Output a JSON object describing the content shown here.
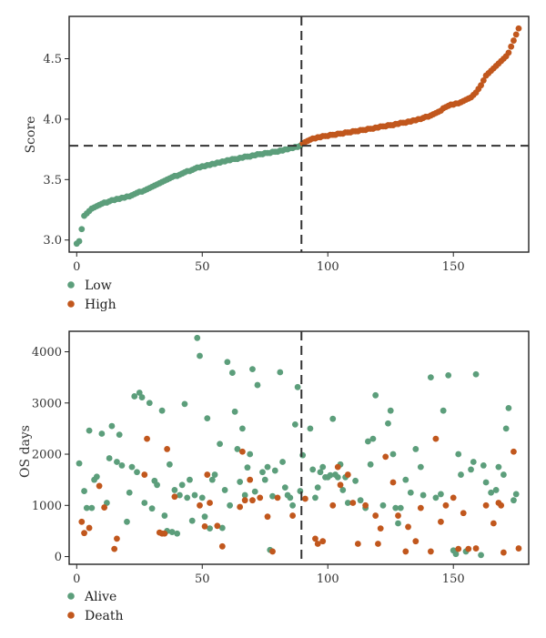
{
  "colors": {
    "green": "#5c9e7b",
    "orange": "#c1571d",
    "frame": "#222222",
    "dash": "#333333"
  },
  "chart_data": [
    {
      "type": "scatter",
      "ylabel": "Score",
      "xlim": [
        -3,
        180
      ],
      "ylim": [
        2.9,
        4.85
      ],
      "xticks": [
        0,
        50,
        100,
        150
      ],
      "yticks": [
        3.0,
        3.5,
        4.0,
        4.5
      ],
      "xticklabels": [
        "0",
        "50",
        "100",
        "150"
      ],
      "yticklabels": [
        "3.0",
        "3.5",
        "4.0",
        "4.5"
      ],
      "cutoff_x": 89.5,
      "cutoff_y": 3.78,
      "legend": [
        "Low",
        "High"
      ],
      "series": [
        {
          "name": "Low",
          "color": "#5c9e7b",
          "x": [
            0,
            1,
            2,
            3,
            4,
            5,
            6,
            7,
            8,
            9,
            10,
            11,
            12,
            13,
            14,
            15,
            16,
            17,
            18,
            19,
            20,
            21,
            22,
            23,
            24,
            25,
            26,
            27,
            28,
            29,
            30,
            31,
            32,
            33,
            34,
            35,
            36,
            37,
            38,
            39,
            40,
            41,
            42,
            43,
            44,
            45,
            46,
            47,
            48,
            49,
            50,
            51,
            52,
            53,
            54,
            55,
            56,
            57,
            58,
            59,
            60,
            61,
            62,
            63,
            64,
            65,
            66,
            67,
            68,
            69,
            70,
            71,
            72,
            73,
            74,
            75,
            76,
            77,
            78,
            79,
            80,
            81,
            82,
            83,
            84,
            85,
            86,
            87,
            88,
            89
          ],
          "y": [
            2.97,
            2.99,
            3.09,
            3.2,
            3.22,
            3.24,
            3.26,
            3.27,
            3.28,
            3.29,
            3.3,
            3.31,
            3.31,
            3.32,
            3.33,
            3.33,
            3.34,
            3.34,
            3.35,
            3.35,
            3.36,
            3.36,
            3.37,
            3.38,
            3.39,
            3.4,
            3.4,
            3.41,
            3.42,
            3.43,
            3.44,
            3.45,
            3.46,
            3.47,
            3.48,
            3.49,
            3.5,
            3.51,
            3.52,
            3.53,
            3.53,
            3.54,
            3.55,
            3.56,
            3.57,
            3.57,
            3.58,
            3.59,
            3.6,
            3.6,
            3.61,
            3.61,
            3.62,
            3.62,
            3.63,
            3.63,
            3.64,
            3.64,
            3.65,
            3.65,
            3.66,
            3.66,
            3.67,
            3.67,
            3.67,
            3.68,
            3.68,
            3.69,
            3.69,
            3.69,
            3.7,
            3.7,
            3.71,
            3.71,
            3.71,
            3.72,
            3.72,
            3.72,
            3.73,
            3.73,
            3.73,
            3.74,
            3.74,
            3.75,
            3.75,
            3.76,
            3.76,
            3.77,
            3.77,
            3.78
          ]
        },
        {
          "name": "High",
          "color": "#c1571d",
          "x": [
            90,
            91,
            92,
            93,
            94,
            95,
            96,
            97,
            98,
            99,
            100,
            101,
            102,
            103,
            104,
            105,
            106,
            107,
            108,
            109,
            110,
            111,
            112,
            113,
            114,
            115,
            116,
            117,
            118,
            119,
            120,
            121,
            122,
            123,
            124,
            125,
            126,
            127,
            128,
            129,
            130,
            131,
            132,
            133,
            134,
            135,
            136,
            137,
            138,
            139,
            140,
            141,
            142,
            143,
            144,
            145,
            146,
            147,
            148,
            149,
            150,
            151,
            152,
            153,
            154,
            155,
            156,
            157,
            158,
            159,
            160,
            161,
            162,
            163,
            164,
            165,
            166,
            167,
            168,
            169,
            170,
            171,
            172,
            173,
            174,
            175,
            176
          ],
          "y": [
            3.8,
            3.81,
            3.82,
            3.83,
            3.84,
            3.84,
            3.85,
            3.85,
            3.86,
            3.86,
            3.86,
            3.87,
            3.87,
            3.87,
            3.88,
            3.88,
            3.88,
            3.89,
            3.89,
            3.89,
            3.9,
            3.9,
            3.9,
            3.91,
            3.91,
            3.91,
            3.92,
            3.92,
            3.92,
            3.93,
            3.93,
            3.94,
            3.94,
            3.94,
            3.95,
            3.95,
            3.95,
            3.96,
            3.96,
            3.97,
            3.97,
            3.97,
            3.98,
            3.98,
            3.99,
            3.99,
            4.0,
            4.0,
            4.01,
            4.02,
            4.02,
            4.03,
            4.04,
            4.05,
            4.06,
            4.07,
            4.09,
            4.1,
            4.11,
            4.12,
            4.12,
            4.13,
            4.13,
            4.14,
            4.15,
            4.16,
            4.17,
            4.18,
            4.2,
            4.22,
            4.25,
            4.28,
            4.32,
            4.36,
            4.38,
            4.4,
            4.42,
            4.44,
            4.46,
            4.48,
            4.5,
            4.52,
            4.55,
            4.6,
            4.65,
            4.7,
            4.75
          ]
        }
      ]
    },
    {
      "type": "scatter",
      "ylabel": "OS days",
      "xlim": [
        -3,
        180
      ],
      "ylim": [
        -150,
        4400
      ],
      "xticks": [
        0,
        50,
        100,
        150
      ],
      "yticks": [
        0,
        1000,
        2000,
        3000,
        4000
      ],
      "xticklabels": [
        "0",
        "50",
        "100",
        "150"
      ],
      "yticklabels": [
        "0",
        "1000",
        "2000",
        "3000",
        "4000"
      ],
      "cutoff_x": 89.5,
      "legend": [
        "Alive",
        "Death"
      ],
      "series": [
        {
          "name": "Alive",
          "color": "#5c9e7b",
          "x": [
            1,
            3,
            4,
            5,
            6,
            7,
            8,
            10,
            12,
            13,
            14,
            16,
            17,
            18,
            20,
            21,
            22,
            23,
            24,
            25,
            26,
            27,
            29,
            30,
            31,
            32,
            34,
            35,
            36,
            37,
            38,
            39,
            40,
            41,
            42,
            43,
            44,
            45,
            46,
            47,
            48,
            49,
            50,
            51,
            52,
            53,
            54,
            55,
            57,
            58,
            59,
            60,
            61,
            62,
            63,
            64,
            65,
            66,
            67,
            68,
            69,
            70,
            71,
            72,
            74,
            75,
            76,
            77,
            78,
            79,
            81,
            82,
            83,
            84,
            85,
            86,
            87,
            88,
            89,
            90,
            93,
            94,
            95,
            96,
            97,
            98,
            99,
            100,
            101,
            102,
            103,
            104,
            105,
            106,
            107,
            108,
            111,
            113,
            115,
            116,
            117,
            118,
            119,
            122,
            124,
            125,
            126,
            127,
            128,
            129,
            131,
            133,
            135,
            137,
            138,
            141,
            143,
            145,
            146,
            148,
            150,
            151,
            152,
            153,
            155,
            157,
            158,
            159,
            161,
            162,
            163,
            165,
            167,
            168,
            170,
            171,
            172,
            174,
            175
          ],
          "y": [
            1820,
            1280,
            950,
            2460,
            950,
            1500,
            1560,
            2400,
            1050,
            1920,
            2550,
            1850,
            2380,
            1780,
            680,
            1250,
            1750,
            3130,
            1650,
            3200,
            3110,
            1050,
            3000,
            940,
            1480,
            1400,
            2850,
            800,
            500,
            1800,
            480,
            1300,
            450,
            1200,
            1400,
            2980,
            1150,
            1500,
            700,
            1200,
            4270,
            3920,
            1150,
            780,
            2700,
            550,
            1500,
            1600,
            2200,
            560,
            1300,
            3800,
            1000,
            3590,
            2830,
            2100,
            1460,
            2500,
            1200,
            1740,
            2000,
            3660,
            1270,
            3350,
            1650,
            1500,
            1750,
            130,
            1180,
            1680,
            3600,
            1850,
            1350,
            1200,
            1150,
            1000,
            2580,
            3310,
            1280,
            1980,
            2500,
            1700,
            1150,
            1350,
            1650,
            1750,
            1550,
            1550,
            1590,
            2690,
            1600,
            1550,
            1800,
            1300,
            1550,
            1050,
            1480,
            1100,
            950,
            2250,
            1800,
            2300,
            3150,
            1000,
            2600,
            2850,
            2000,
            950,
            650,
            950,
            1500,
            1250,
            2100,
            1750,
            1200,
            3500,
            1150,
            1220,
            2850,
            3540,
            120,
            50,
            2000,
            1600,
            100,
            1700,
            1850,
            3560,
            30,
            1780,
            1450,
            1250,
            1300,
            1750,
            1600,
            2500,
            2900,
            1100,
            1220
          ]
        },
        {
          "name": "Death",
          "color": "#c1571d",
          "x": [
            2,
            3,
            5,
            9,
            11,
            15,
            16,
            27,
            28,
            33,
            34,
            35,
            36,
            39,
            49,
            51,
            52,
            53,
            56,
            58,
            65,
            66,
            67,
            69,
            70,
            73,
            76,
            78,
            80,
            86,
            91,
            95,
            96,
            98,
            102,
            104,
            105,
            108,
            110,
            112,
            115,
            119,
            120,
            121,
            123,
            126,
            128,
            131,
            132,
            135,
            137,
            141,
            143,
            145,
            147,
            150,
            152,
            154,
            156,
            159,
            163,
            166,
            168,
            169,
            170,
            174,
            176
          ],
          "y": [
            680,
            460,
            560,
            1380,
            960,
            150,
            350,
            1600,
            2300,
            470,
            450,
            450,
            2100,
            1170,
            1000,
            590,
            1600,
            1050,
            600,
            200,
            970,
            2050,
            1100,
            1500,
            1100,
            1150,
            780,
            100,
            1150,
            800,
            1130,
            350,
            250,
            300,
            1000,
            1750,
            1400,
            1600,
            1050,
            250,
            1000,
            800,
            250,
            550,
            1950,
            1450,
            800,
            100,
            580,
            300,
            950,
            100,
            2300,
            680,
            1000,
            1150,
            150,
            850,
            150,
            160,
            1000,
            650,
            1050,
            1000,
            80,
            2050,
            160
          ]
        }
      ]
    }
  ]
}
